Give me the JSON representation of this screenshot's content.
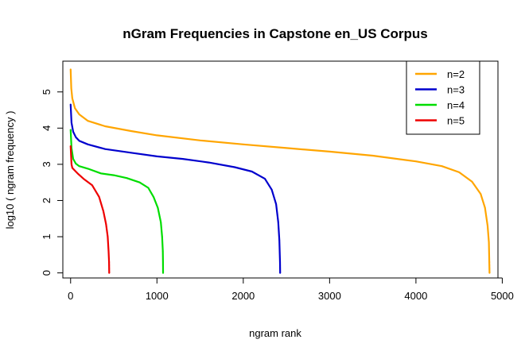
{
  "chart_data": {
    "type": "scatter",
    "title": "nGram Frequencies in Capstone en_US Corpus",
    "xlabel": "ngram rank",
    "ylabel": "log10 ( ngram frequency )",
    "xlim": [
      -90,
      4950
    ],
    "ylim": [
      -0.14,
      5.85
    ],
    "xticks": [
      0,
      1000,
      2000,
      3000,
      4000,
      5000
    ],
    "yticks": [
      0,
      1,
      2,
      3,
      4,
      5
    ],
    "legend_position": "top-right",
    "series": [
      {
        "name": "n=2",
        "color": "#FFA500",
        "points": [
          [
            0,
            5.62
          ],
          [
            8,
            5.1
          ],
          [
            20,
            4.82
          ],
          [
            50,
            4.55
          ],
          [
            100,
            4.38
          ],
          [
            200,
            4.2
          ],
          [
            400,
            4.05
          ],
          [
            700,
            3.92
          ],
          [
            1000,
            3.8
          ],
          [
            1500,
            3.66
          ],
          [
            2000,
            3.55
          ],
          [
            2500,
            3.45
          ],
          [
            3000,
            3.35
          ],
          [
            3500,
            3.24
          ],
          [
            4000,
            3.08
          ],
          [
            4300,
            2.95
          ],
          [
            4500,
            2.78
          ],
          [
            4650,
            2.52
          ],
          [
            4750,
            2.18
          ],
          [
            4800,
            1.8
          ],
          [
            4830,
            1.3
          ],
          [
            4845,
            0.85
          ],
          [
            4850,
            0.3
          ],
          [
            4852,
            0.0
          ]
        ]
      },
      {
        "name": "n=3",
        "color": "#0000CD",
        "points": [
          [
            0,
            4.65
          ],
          [
            10,
            4.15
          ],
          [
            30,
            3.9
          ],
          [
            60,
            3.75
          ],
          [
            100,
            3.65
          ],
          [
            200,
            3.55
          ],
          [
            400,
            3.42
          ],
          [
            700,
            3.32
          ],
          [
            1000,
            3.22
          ],
          [
            1300,
            3.15
          ],
          [
            1600,
            3.05
          ],
          [
            1900,
            2.92
          ],
          [
            2100,
            2.8
          ],
          [
            2250,
            2.6
          ],
          [
            2330,
            2.3
          ],
          [
            2380,
            1.9
          ],
          [
            2405,
            1.4
          ],
          [
            2418,
            0.9
          ],
          [
            2425,
            0.3
          ],
          [
            2427,
            0.0
          ]
        ]
      },
      {
        "name": "n=4",
        "color": "#00DD00",
        "points": [
          [
            0,
            3.95
          ],
          [
            10,
            3.45
          ],
          [
            30,
            3.15
          ],
          [
            60,
            3.02
          ],
          [
            100,
            2.95
          ],
          [
            200,
            2.88
          ],
          [
            350,
            2.75
          ],
          [
            500,
            2.7
          ],
          [
            650,
            2.62
          ],
          [
            800,
            2.5
          ],
          [
            900,
            2.35
          ],
          [
            960,
            2.1
          ],
          [
            1010,
            1.8
          ],
          [
            1045,
            1.4
          ],
          [
            1060,
            1.0
          ],
          [
            1068,
            0.6
          ],
          [
            1070,
            0.3
          ],
          [
            1071,
            0.0
          ]
        ]
      },
      {
        "name": "n=5",
        "color": "#EE0000",
        "points": [
          [
            0,
            3.5
          ],
          [
            10,
            3.0
          ],
          [
            20,
            2.9
          ],
          [
            40,
            2.85
          ],
          [
            80,
            2.75
          ],
          [
            150,
            2.6
          ],
          [
            250,
            2.42
          ],
          [
            330,
            2.1
          ],
          [
            380,
            1.7
          ],
          [
            410,
            1.35
          ],
          [
            430,
            1.0
          ],
          [
            440,
            0.6
          ],
          [
            445,
            0.3
          ],
          [
            447,
            0.0
          ]
        ]
      }
    ]
  }
}
